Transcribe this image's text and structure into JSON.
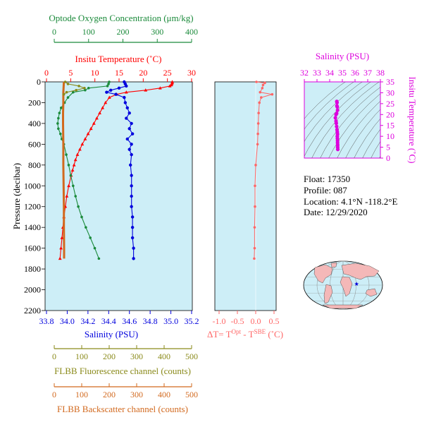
{
  "colors": {
    "oxygen": "#1a8a3a",
    "temperature": "#ff0000",
    "salinity": "#0000dd",
    "fluorescence": "#8a8a1a",
    "backscatter": "#d2691e",
    "delta_t": "#ff6666",
    "ts_axis": "#dd00dd",
    "panel_bg": "#cdeef7"
  },
  "float_info": {
    "float": "Float:  17350",
    "profile": "Profile:  087",
    "location": "Location:  4.1°N  -118.2°E",
    "date": "Date:  12/29/2020"
  },
  "map_marker": {
    "lon": -118.2,
    "lat": 4.1,
    "icon": "star-icon"
  },
  "chart_data": [
    {
      "id": "profile",
      "type": "line",
      "y_axis": {
        "label": "Pressure (decibar)",
        "range": [
          0,
          2200
        ],
        "ticks": [
          0,
          200,
          400,
          600,
          800,
          1000,
          1200,
          1400,
          1600,
          1800,
          2000,
          2200
        ],
        "inverted": true
      },
      "axes": {
        "oxygen": {
          "label": "Optode Oxygen Concentration (μm/kg)",
          "range": [
            0,
            400
          ],
          "ticks": [
            0,
            100,
            200,
            300,
            400
          ]
        },
        "temperature": {
          "label": "Insitu Temperature (˚C)",
          "range": [
            0,
            30
          ],
          "ticks": [
            0,
            5,
            10,
            15,
            20,
            25,
            30
          ]
        },
        "salinity": {
          "label": "Salinity (PSU)",
          "range": [
            33.8,
            35.2
          ],
          "ticks": [
            "33.8",
            "34.0",
            "34.2",
            "34.4",
            "34.6",
            "34.8",
            "35.0",
            "35.2"
          ]
        },
        "fluorescence": {
          "label": "FLBB Fluorescence channel (counts)",
          "range": [
            0,
            500
          ],
          "ticks": [
            0,
            100,
            200,
            300,
            400,
            500
          ]
        },
        "backscatter": {
          "label": "FLBB Backscatter channel (counts)",
          "range": [
            0,
            500
          ],
          "ticks": [
            0,
            100,
            200,
            300,
            400,
            500
          ]
        }
      },
      "series": [
        {
          "key": "temperature",
          "p": [
            0,
            10,
            20,
            30,
            40,
            60,
            80,
            100,
            120,
            150,
            200,
            250,
            300,
            350,
            400,
            450,
            500,
            550,
            600,
            650,
            700,
            750,
            800,
            850,
            900,
            1000,
            1100,
            1200,
            1300,
            1400,
            1500,
            1600,
            1700
          ],
          "v": [
            26.0,
            26.0,
            25.9,
            25.8,
            25.5,
            23.5,
            20.5,
            16.5,
            14.5,
            13.0,
            12.2,
            11.6,
            11.0,
            10.4,
            9.8,
            9.2,
            8.6,
            8.0,
            7.4,
            6.9,
            6.4,
            6.0,
            5.7,
            5.4,
            5.1,
            4.6,
            4.2,
            3.9,
            3.6,
            3.4,
            3.2,
            3.0,
            2.8
          ]
        },
        {
          "key": "salinity",
          "p": [
            0,
            20,
            40,
            60,
            80,
            100,
            120,
            150,
            200,
            250,
            300,
            350,
            400,
            450,
            500,
            550,
            600,
            650,
            700,
            800,
            900,
            1000,
            1100,
            1200,
            1300,
            1400,
            1500,
            1600,
            1700
          ],
          "v": [
            34.55,
            34.56,
            34.57,
            34.5,
            34.42,
            34.38,
            34.47,
            34.55,
            34.56,
            34.58,
            34.6,
            34.57,
            34.62,
            34.6,
            34.63,
            34.58,
            34.62,
            34.6,
            34.62,
            34.61,
            34.62,
            34.62,
            34.62,
            34.62,
            34.63,
            34.63,
            34.63,
            34.64,
            34.64
          ]
        },
        {
          "key": "oxygen",
          "p": [
            0,
            20,
            40,
            60,
            80,
            100,
            150,
            200,
            250,
            300,
            350,
            400,
            450,
            500,
            550,
            600,
            700,
            800,
            900,
            1000,
            1100,
            1200,
            1300,
            1400,
            1500,
            1600,
            1700
          ],
          "v": [
            160,
            158,
            155,
            100,
            90,
            55,
            40,
            30,
            20,
            15,
            12,
            10,
            12,
            18,
            22,
            28,
            35,
            42,
            48,
            55,
            62,
            70,
            80,
            92,
            105,
            118,
            130
          ]
        },
        {
          "key": "backscatter",
          "p": [
            0,
            50,
            100,
            150,
            200,
            300,
            400,
            600,
            800,
            1000,
            1200,
            1400,
            1600,
            1700
          ],
          "v": [
            35,
            34,
            33,
            33,
            33,
            32,
            32,
            33,
            33,
            34,
            35,
            35,
            36,
            36
          ]
        },
        {
          "key": "fluorescence",
          "p": [
            0,
            20,
            40,
            60,
            80,
            100,
            120
          ],
          "v": [
            40,
            50,
            90,
            110,
            80,
            45,
            35
          ]
        }
      ]
    },
    {
      "id": "delta_t",
      "type": "line",
      "x_axis": {
        "label": "ΔT= T^Opt - T^SBE (˚C)",
        "range": [
          -1.0,
          0.5
        ],
        "ticks": [
          "-1.0",
          "-0.5",
          "0.0",
          "0.5"
        ]
      },
      "y_axis": {
        "range": [
          0,
          2200
        ],
        "inverted": true
      },
      "series": [
        {
          "key": "delta_t",
          "p": [
            0,
            10,
            30,
            60,
            100,
            120,
            150,
            200,
            300,
            400,
            500,
            600,
            800,
            1000,
            1200,
            1400,
            1600,
            1700
          ],
          "v": [
            0.02,
            0.25,
            0.2,
            0.18,
            0.12,
            0.45,
            0.15,
            0.1,
            0.08,
            0.07,
            0.06,
            0.05,
            0.0,
            -0.02,
            -0.02,
            -0.03,
            -0.03,
            -0.04
          ]
        }
      ]
    },
    {
      "id": "ts",
      "type": "scatter",
      "x_axis": {
        "label": "Salinity (PSU)",
        "range": [
          32,
          38
        ],
        "ticks": [
          "32",
          "33",
          "34",
          "35",
          "36",
          "37",
          "38"
        ]
      },
      "y_axis": {
        "label": "Insitu Temperature (˚C)",
        "range": [
          0,
          35
        ],
        "ticks": [
          "0",
          "5",
          "10",
          "15",
          "20",
          "25",
          "30",
          "35"
        ]
      },
      "points": {
        "salinity": [
          34.56,
          34.58,
          34.57,
          34.6,
          34.62,
          34.55,
          34.5,
          34.45,
          34.5,
          34.52,
          34.55,
          34.58,
          34.6,
          34.62,
          34.6,
          34.61,
          34.62,
          34.62,
          34.63,
          34.63,
          34.64
        ],
        "temperature": [
          26.0,
          25.5,
          24.0,
          23.5,
          22.0,
          20.5,
          20.0,
          18.5,
          17.0,
          16.0,
          14.5,
          13.0,
          12.0,
          11.0,
          10.0,
          9.0,
          8.0,
          7.0,
          6.0,
          5.0,
          4.0
        ]
      }
    }
  ]
}
